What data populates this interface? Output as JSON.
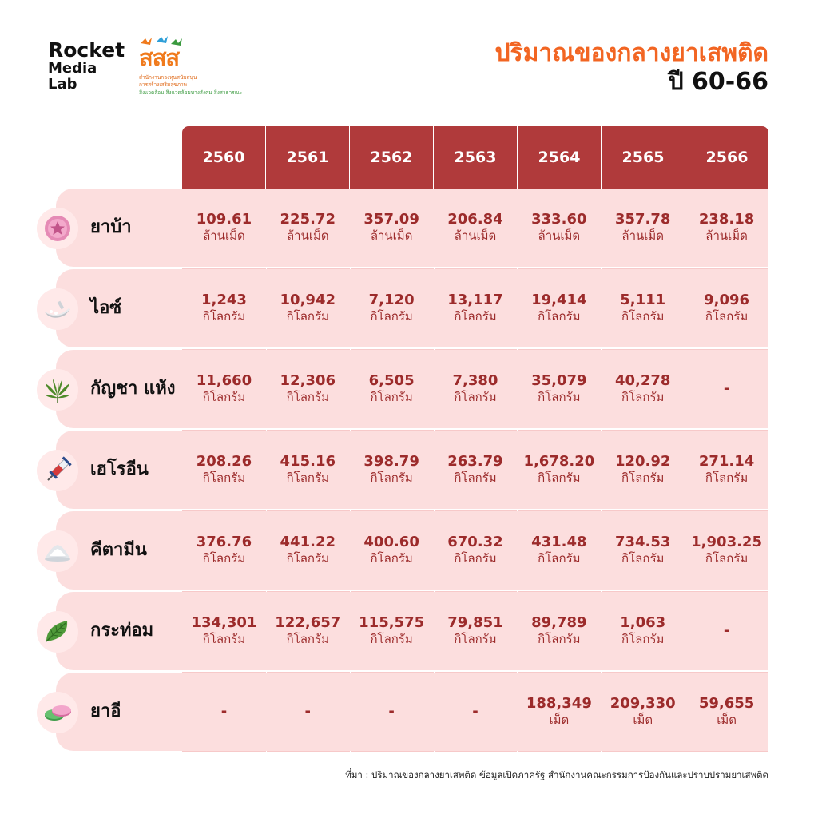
{
  "logo": {
    "rocket_line1": "Rocket",
    "rocket_line2": "Media",
    "rocket_line3": "Lab",
    "sss_mark": "สสส",
    "sss_sub1": "สำนักงานกองทุนสนับสนุน",
    "sss_sub2": "การสร้างเสริมสุขภาพ",
    "sss_sub3": "สิ่งแวดล้อม สิ่งแวดล้อมทางสังคม สิ่งสาธารณะ"
  },
  "title": {
    "line1": "ปริมาณของกลางยาเสพติด",
    "line2": "ปี 60-66"
  },
  "colors": {
    "header_bg": "#b03a3b",
    "title_accent": "#f26522",
    "cell_bg": "#f7c9c9",
    "label_bg": "#fcdede",
    "value_text": "#9c2b2b"
  },
  "chart_data": {
    "type": "table",
    "columns": [
      "2560",
      "2561",
      "2562",
      "2563",
      "2564",
      "2565",
      "2566"
    ],
    "rows": [
      {
        "name": "ยาบ้า",
        "icon": "pink-pill-icon",
        "values": [
          "109.61",
          "225.72",
          "357.09",
          "206.84",
          "333.60",
          "357.78",
          "238.18"
        ],
        "units": [
          "ล้านเม็ด",
          "ล้านเม็ด",
          "ล้านเม็ด",
          "ล้านเม็ด",
          "ล้านเม็ด",
          "ล้านเม็ด",
          "ล้านเม็ด"
        ]
      },
      {
        "name": "ไอซ์",
        "icon": "ice-crystal-icon",
        "values": [
          "1,243",
          "10,942",
          "7,120",
          "13,117",
          "19,414",
          "5,111",
          "9,096"
        ],
        "units": [
          "กิโลกรัม",
          "กิโลกรัม",
          "กิโลกรัม",
          "กิโลกรัม",
          "กิโลกรัม",
          "กิโลกรัม",
          "กิโลกรัม"
        ]
      },
      {
        "name": "กัญชา แห้ง",
        "icon": "cannabis-leaf-icon",
        "values": [
          "11,660",
          "12,306",
          "6,505",
          "7,380",
          "35,079",
          "40,278",
          "-"
        ],
        "units": [
          "กิโลกรัม",
          "กิโลกรัม",
          "กิโลกรัม",
          "กิโลกรัม",
          "กิโลกรัม",
          "กิโลกรัม",
          ""
        ]
      },
      {
        "name": "เฮโรอีน",
        "icon": "syringe-icon",
        "values": [
          "208.26",
          "415.16",
          "398.79",
          "263.79",
          "1,678.20",
          "120.92",
          "271.14"
        ],
        "units": [
          "กิโลกรัม",
          "กิโลกรัม",
          "กิโลกรัม",
          "กิโลกรัม",
          "กิโลกรัม",
          "กิโลกรัม",
          "กิโลกรัม"
        ]
      },
      {
        "name": "คีตามีน",
        "icon": "powder-pile-icon",
        "values": [
          "376.76",
          "441.22",
          "400.60",
          "670.32",
          "431.48",
          "734.53",
          "1,903.25"
        ],
        "units": [
          "กิโลกรัม",
          "กิโลกรัม",
          "กิโลกรัม",
          "กิโลกรัม",
          "กิโลกรัม",
          "กิโลกรัม",
          "กิโลกรัม"
        ]
      },
      {
        "name": "กระท่อม",
        "icon": "kratom-leaf-icon",
        "values": [
          "134,301",
          "122,657",
          "115,575",
          "79,851",
          "89,789",
          "1,063",
          "-"
        ],
        "units": [
          "กิโลกรัม",
          "กิโลกรัม",
          "กิโลกรัม",
          "กิโลกรัม",
          "กิโลกรัม",
          "กิโลกรัม",
          ""
        ]
      },
      {
        "name": "ยาอี",
        "icon": "ecstasy-pills-icon",
        "values": [
          "-",
          "-",
          "-",
          "-",
          "188,349",
          "209,330",
          "59,655"
        ],
        "units": [
          "",
          "",
          "",
          "",
          "เม็ด",
          "เม็ด",
          "เม็ด"
        ]
      }
    ]
  },
  "source": "ที่มา : ปริมาณของกลางยาเสพติด ข้อมูลเปิดภาครัฐ สำนักงานคณะกรรมการป้องกันและปราบปรามยาเสพติด"
}
